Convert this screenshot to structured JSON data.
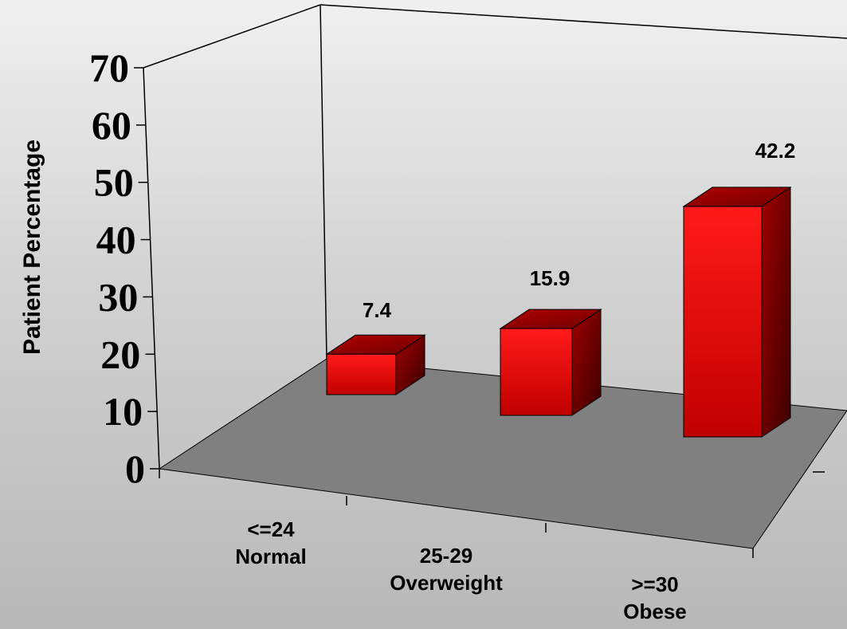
{
  "chart_data": {
    "type": "bar",
    "categories": [
      "<=24 Normal",
      "25-29 Overweight",
      ">=30 Obese"
    ],
    "category_lines": [
      [
        "<=24",
        "Normal"
      ],
      [
        "25-29",
        "Overweight"
      ],
      [
        ">=30",
        "Obese"
      ]
    ],
    "values": [
      7.4,
      15.9,
      42.2
    ],
    "data_labels": [
      "7.4",
      "15.9",
      "42.2"
    ],
    "ylabel": "Patient Percentage",
    "ylim": [
      0,
      70
    ],
    "yticks": [
      "0",
      "10",
      "20",
      "30",
      "40",
      "50",
      "60",
      "70"
    ],
    "style": "3d",
    "bar_color": "#ff0000",
    "floor_color": "#808080"
  }
}
